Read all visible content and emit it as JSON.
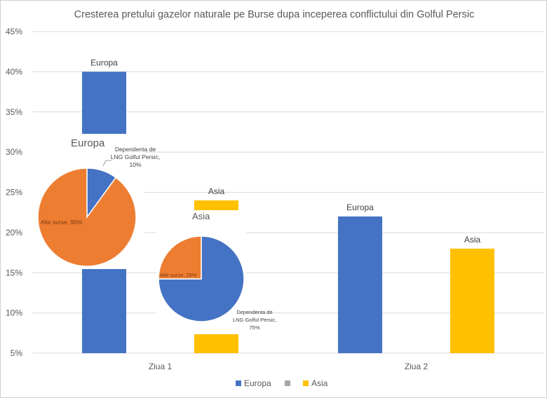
{
  "chart_data": {
    "type": "bar",
    "title": "Cresterea pretului gazelor naturale pe Burse dupa inceperea conflictului din Golful Persic",
    "categories": [
      "Ziua 1",
      "Ziua 2"
    ],
    "series": [
      {
        "name": "Europa",
        "color": "#4472C4",
        "values": [
          40,
          22
        ]
      },
      {
        "name": "",
        "color": "#A5A5A5",
        "values": [
          null,
          null
        ]
      },
      {
        "name": "Asia",
        "color": "#FFC000",
        "values": [
          24,
          18
        ]
      }
    ],
    "data_labels": [
      [
        "Europa",
        "Europa"
      ],
      [],
      [
        "Asia",
        "Asia"
      ]
    ],
    "yticks": [
      "5%",
      "10%",
      "15%",
      "20%",
      "25%",
      "30%",
      "35%",
      "40%",
      "45%"
    ],
    "ylim": [
      5,
      45
    ],
    "grid": true,
    "legend": "bottom",
    "inset_pies": [
      {
        "title": "Europa",
        "slices": [
          {
            "label": "Dependenta de LNG Golful Persic, 10%",
            "value": 10,
            "color": "#4472C4"
          },
          {
            "label": "Alte surse, 90%",
            "value": 90,
            "color": "#ED7D31"
          }
        ]
      },
      {
        "title": "Asia",
        "slices": [
          {
            "label": "Dependenta de LNG Golful Persic, 75%",
            "value": 75,
            "color": "#4472C4"
          },
          {
            "label": "Alte surse, 25%",
            "value": 25,
            "color": "#ED7D31"
          }
        ]
      }
    ]
  }
}
